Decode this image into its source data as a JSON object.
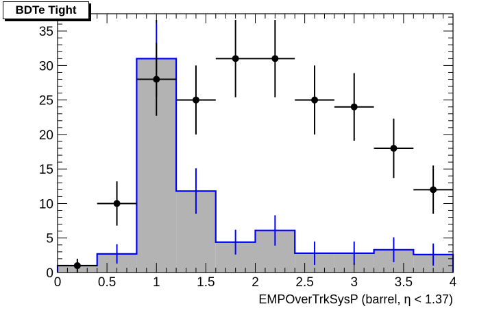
{
  "chart_data": {
    "type": "histogram_with_points",
    "title": "BDTe Tight",
    "xlabel": "EMPOverTrkSysP (barrel,   η < 1.37)",
    "ylabel": "",
    "xlim": [
      0,
      4
    ],
    "ylim": [
      0,
      37.5
    ],
    "x_ticks": [
      "0",
      "0.5",
      "1",
      "1.5",
      "2",
      "2.5",
      "3",
      "3.5",
      "4"
    ],
    "y_ticks": [
      "0",
      "5",
      "10",
      "15",
      "20",
      "25",
      "30",
      "35"
    ],
    "bin_edges": [
      0,
      0.4,
      0.8,
      1.2,
      1.6,
      2.0,
      2.4,
      2.8,
      3.2,
      3.6,
      4.0
    ],
    "series": [
      {
        "style": "filled-histogram",
        "color": "#0000ff",
        "fill": "#b3b3b3",
        "values": [
          1,
          2.7,
          31,
          11.8,
          4.4,
          6.1,
          2.8,
          2.8,
          3.3,
          2.6
        ],
        "errors": [
          0,
          1.4,
          5.6,
          3.3,
          1.8,
          2.2,
          1.7,
          1.7,
          1.8,
          1.6
        ]
      },
      {
        "style": "points",
        "color": "#000000",
        "values": [
          1,
          10,
          28,
          25,
          31,
          31,
          25,
          24,
          18,
          12
        ],
        "errors": [
          1,
          3.2,
          5.3,
          5,
          5.6,
          5.6,
          5,
          4.9,
          4.3,
          3.5
        ]
      }
    ]
  }
}
